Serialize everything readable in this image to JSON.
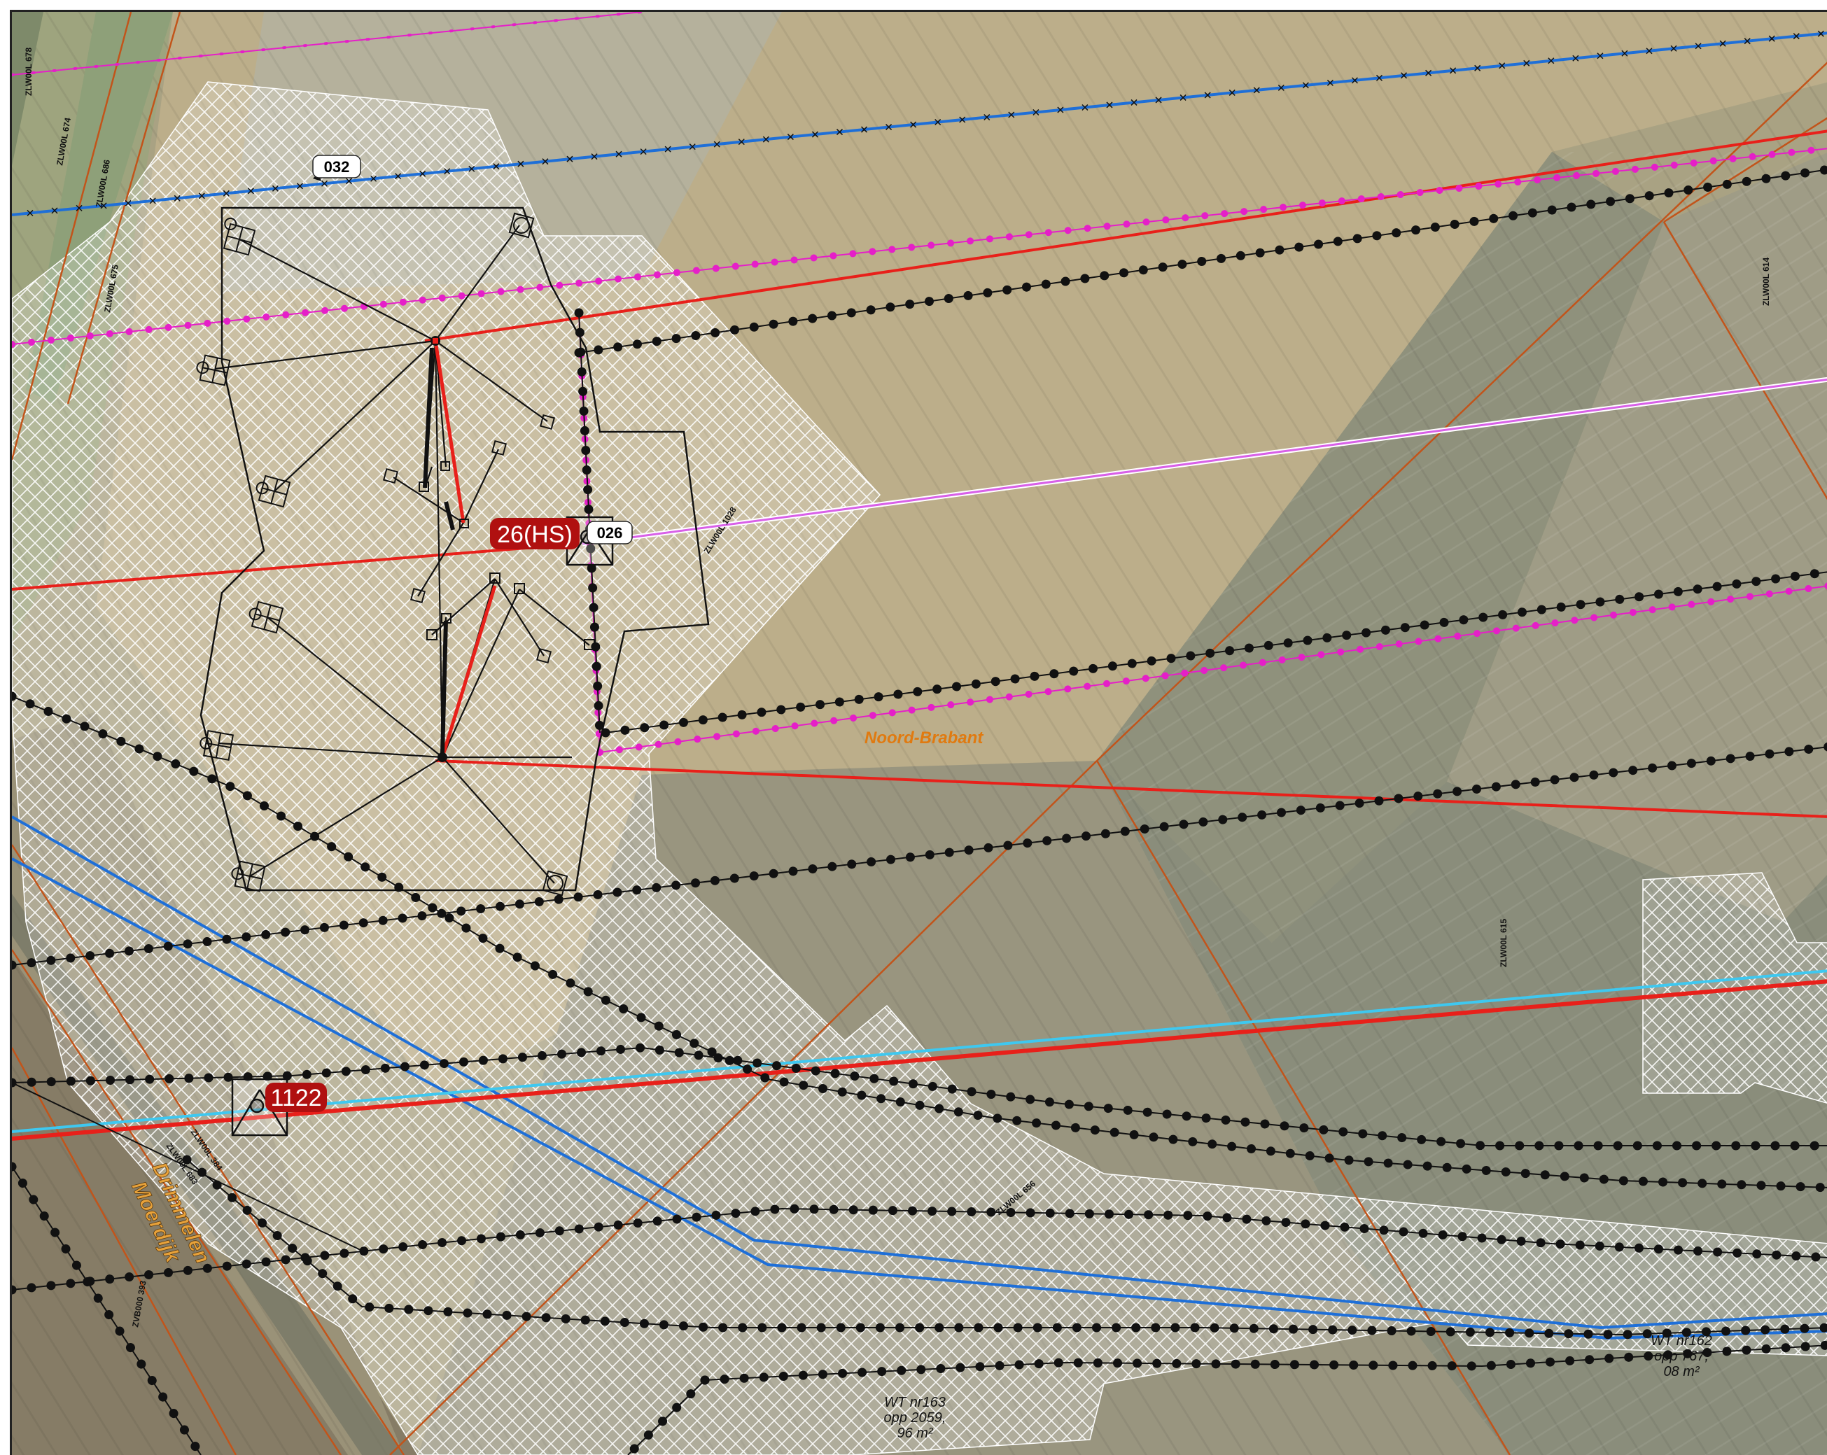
{
  "labels": {
    "road_ids": [
      {
        "id": "r678",
        "text": "ZLW00L 678"
      },
      {
        "id": "r674",
        "text": "ZLW00L 674"
      },
      {
        "id": "r686",
        "text": "ZLW00L 686"
      },
      {
        "id": "r675",
        "text": "ZLW00L 675"
      },
      {
        "id": "r614",
        "text": "ZLW00L 614"
      },
      {
        "id": "r1028",
        "text": "ZLW00L 1028"
      },
      {
        "id": "r615",
        "text": "ZLW00L 615"
      },
      {
        "id": "r384",
        "text": "ZLW00L 384"
      },
      {
        "id": "r683",
        "text": "ZLW00L 683"
      },
      {
        "id": "r656",
        "text": "ZLW00L 656"
      },
      {
        "id": "r393",
        "text": "ZVB000 393"
      }
    ],
    "tags": {
      "t032": "032",
      "t026": "026"
    },
    "red_tags": {
      "hs": "26(HS)",
      "n1122": "1122"
    },
    "place_noord_brabant": "Noord-Brabant",
    "place_drimmelen_line1": "Drimmelen",
    "place_drimmelen_line2": "Moerdijk",
    "wt162": {
      "line1": "WT nr162",
      "line2": "opp 767,",
      "line3": "08 m²"
    },
    "wt163": {
      "line1": "WT nr163",
      "line2": "opp 2059,",
      "line3": "96 m²"
    }
  },
  "colors": {
    "field_light": "#b9b08e",
    "field_dark": "#8e8b74",
    "parcel_orange": "#c2541a",
    "hv_red": "#e8201a",
    "magenta": "#e51fc8",
    "dotted_black": "#111111",
    "blue": "#1e6fd8",
    "light_blue": "#3ec8f0",
    "violet": "#d860e8",
    "hatch_white": "#ffffff",
    "place_orange": "#e07a10"
  }
}
